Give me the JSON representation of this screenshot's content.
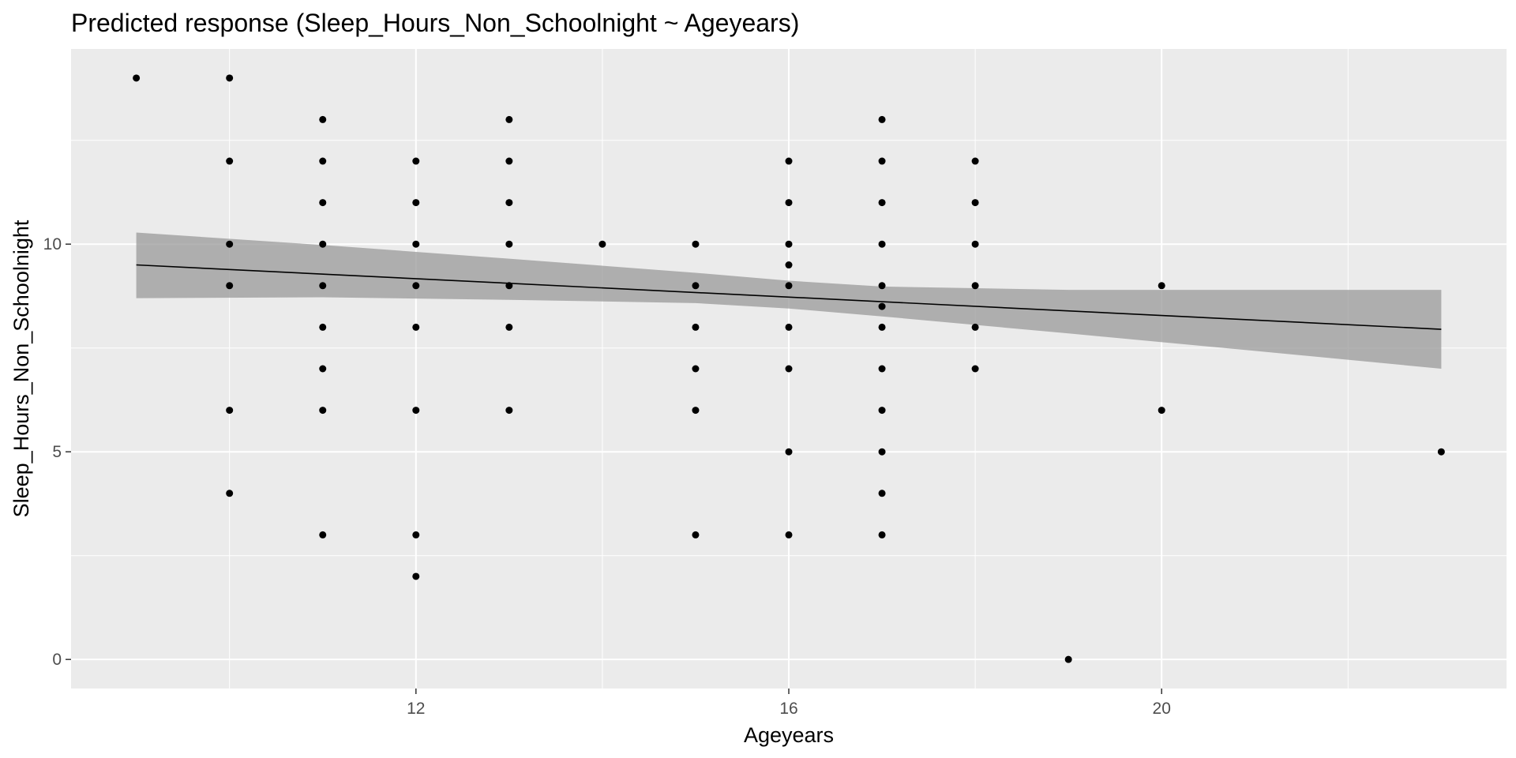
{
  "chart_data": {
    "type": "scatter",
    "title": "Predicted response (Sleep_Hours_Non_Schoolnight ~ Ageyears)",
    "xlabel": "Ageyears",
    "ylabel": "Sleep_Hours_Non_Schoolnight",
    "xlim": [
      8.3,
      23.7
    ],
    "ylim": [
      -0.7,
      14.7
    ],
    "x_ticks": [
      12,
      16,
      20
    ],
    "x_tick_labels": [
      "12",
      "16",
      "20"
    ],
    "y_ticks": [
      0,
      5,
      10
    ],
    "y_tick_labels": [
      "0",
      "5",
      "10"
    ],
    "grid": true,
    "background": "#ebebeb",
    "point_color": "#000000",
    "ribbon_color": "#999999",
    "points": [
      [
        9,
        14
      ],
      [
        10,
        14
      ],
      [
        10,
        12
      ],
      [
        10,
        10
      ],
      [
        10,
        9
      ],
      [
        10,
        6
      ],
      [
        10,
        4
      ],
      [
        11,
        13
      ],
      [
        11,
        12
      ],
      [
        11,
        11
      ],
      [
        11,
        10
      ],
      [
        11,
        9
      ],
      [
        11,
        8
      ],
      [
        11,
        7
      ],
      [
        11,
        6
      ],
      [
        11,
        3
      ],
      [
        12,
        12
      ],
      [
        12,
        11
      ],
      [
        12,
        10
      ],
      [
        12,
        9
      ],
      [
        12,
        8
      ],
      [
        12,
        6
      ],
      [
        12,
        3
      ],
      [
        12,
        2
      ],
      [
        13,
        13
      ],
      [
        13,
        12
      ],
      [
        13,
        11
      ],
      [
        13,
        10
      ],
      [
        13,
        9
      ],
      [
        13,
        8
      ],
      [
        13,
        6
      ],
      [
        14,
        10
      ],
      [
        15,
        10
      ],
      [
        15,
        9
      ],
      [
        15,
        8
      ],
      [
        15,
        7
      ],
      [
        15,
        6
      ],
      [
        15,
        3
      ],
      [
        16,
        12
      ],
      [
        16,
        11
      ],
      [
        16,
        10
      ],
      [
        16,
        9.5
      ],
      [
        16,
        9
      ],
      [
        16,
        8
      ],
      [
        16,
        7
      ],
      [
        16,
        5
      ],
      [
        16,
        3
      ],
      [
        17,
        13
      ],
      [
        17,
        12
      ],
      [
        17,
        11
      ],
      [
        17,
        10
      ],
      [
        17,
        9
      ],
      [
        17,
        8.5
      ],
      [
        17,
        8
      ],
      [
        17,
        7
      ],
      [
        17,
        6
      ],
      [
        17,
        5
      ],
      [
        17,
        4
      ],
      [
        17,
        3
      ],
      [
        18,
        12
      ],
      [
        18,
        11
      ],
      [
        18,
        10
      ],
      [
        18,
        9
      ],
      [
        18,
        8
      ],
      [
        18,
        7
      ],
      [
        19,
        0
      ],
      [
        20,
        9
      ],
      [
        20,
        6
      ],
      [
        23,
        5
      ]
    ],
    "fit": {
      "x": [
        9,
        23
      ],
      "y": [
        9.5,
        7.95
      ],
      "lower": [
        8.7,
        7.0
      ],
      "upper": [
        10.28,
        8.9
      ],
      "band": {
        "x": [
          9,
          11,
          13,
          15,
          16,
          17,
          19,
          21,
          23
        ],
        "lower": [
          8.7,
          8.72,
          8.66,
          8.58,
          8.45,
          8.26,
          7.85,
          7.43,
          7.0
        ],
        "upper": [
          10.28,
          9.98,
          9.65,
          9.31,
          9.12,
          8.98,
          8.9,
          8.9,
          8.9
        ]
      }
    }
  }
}
